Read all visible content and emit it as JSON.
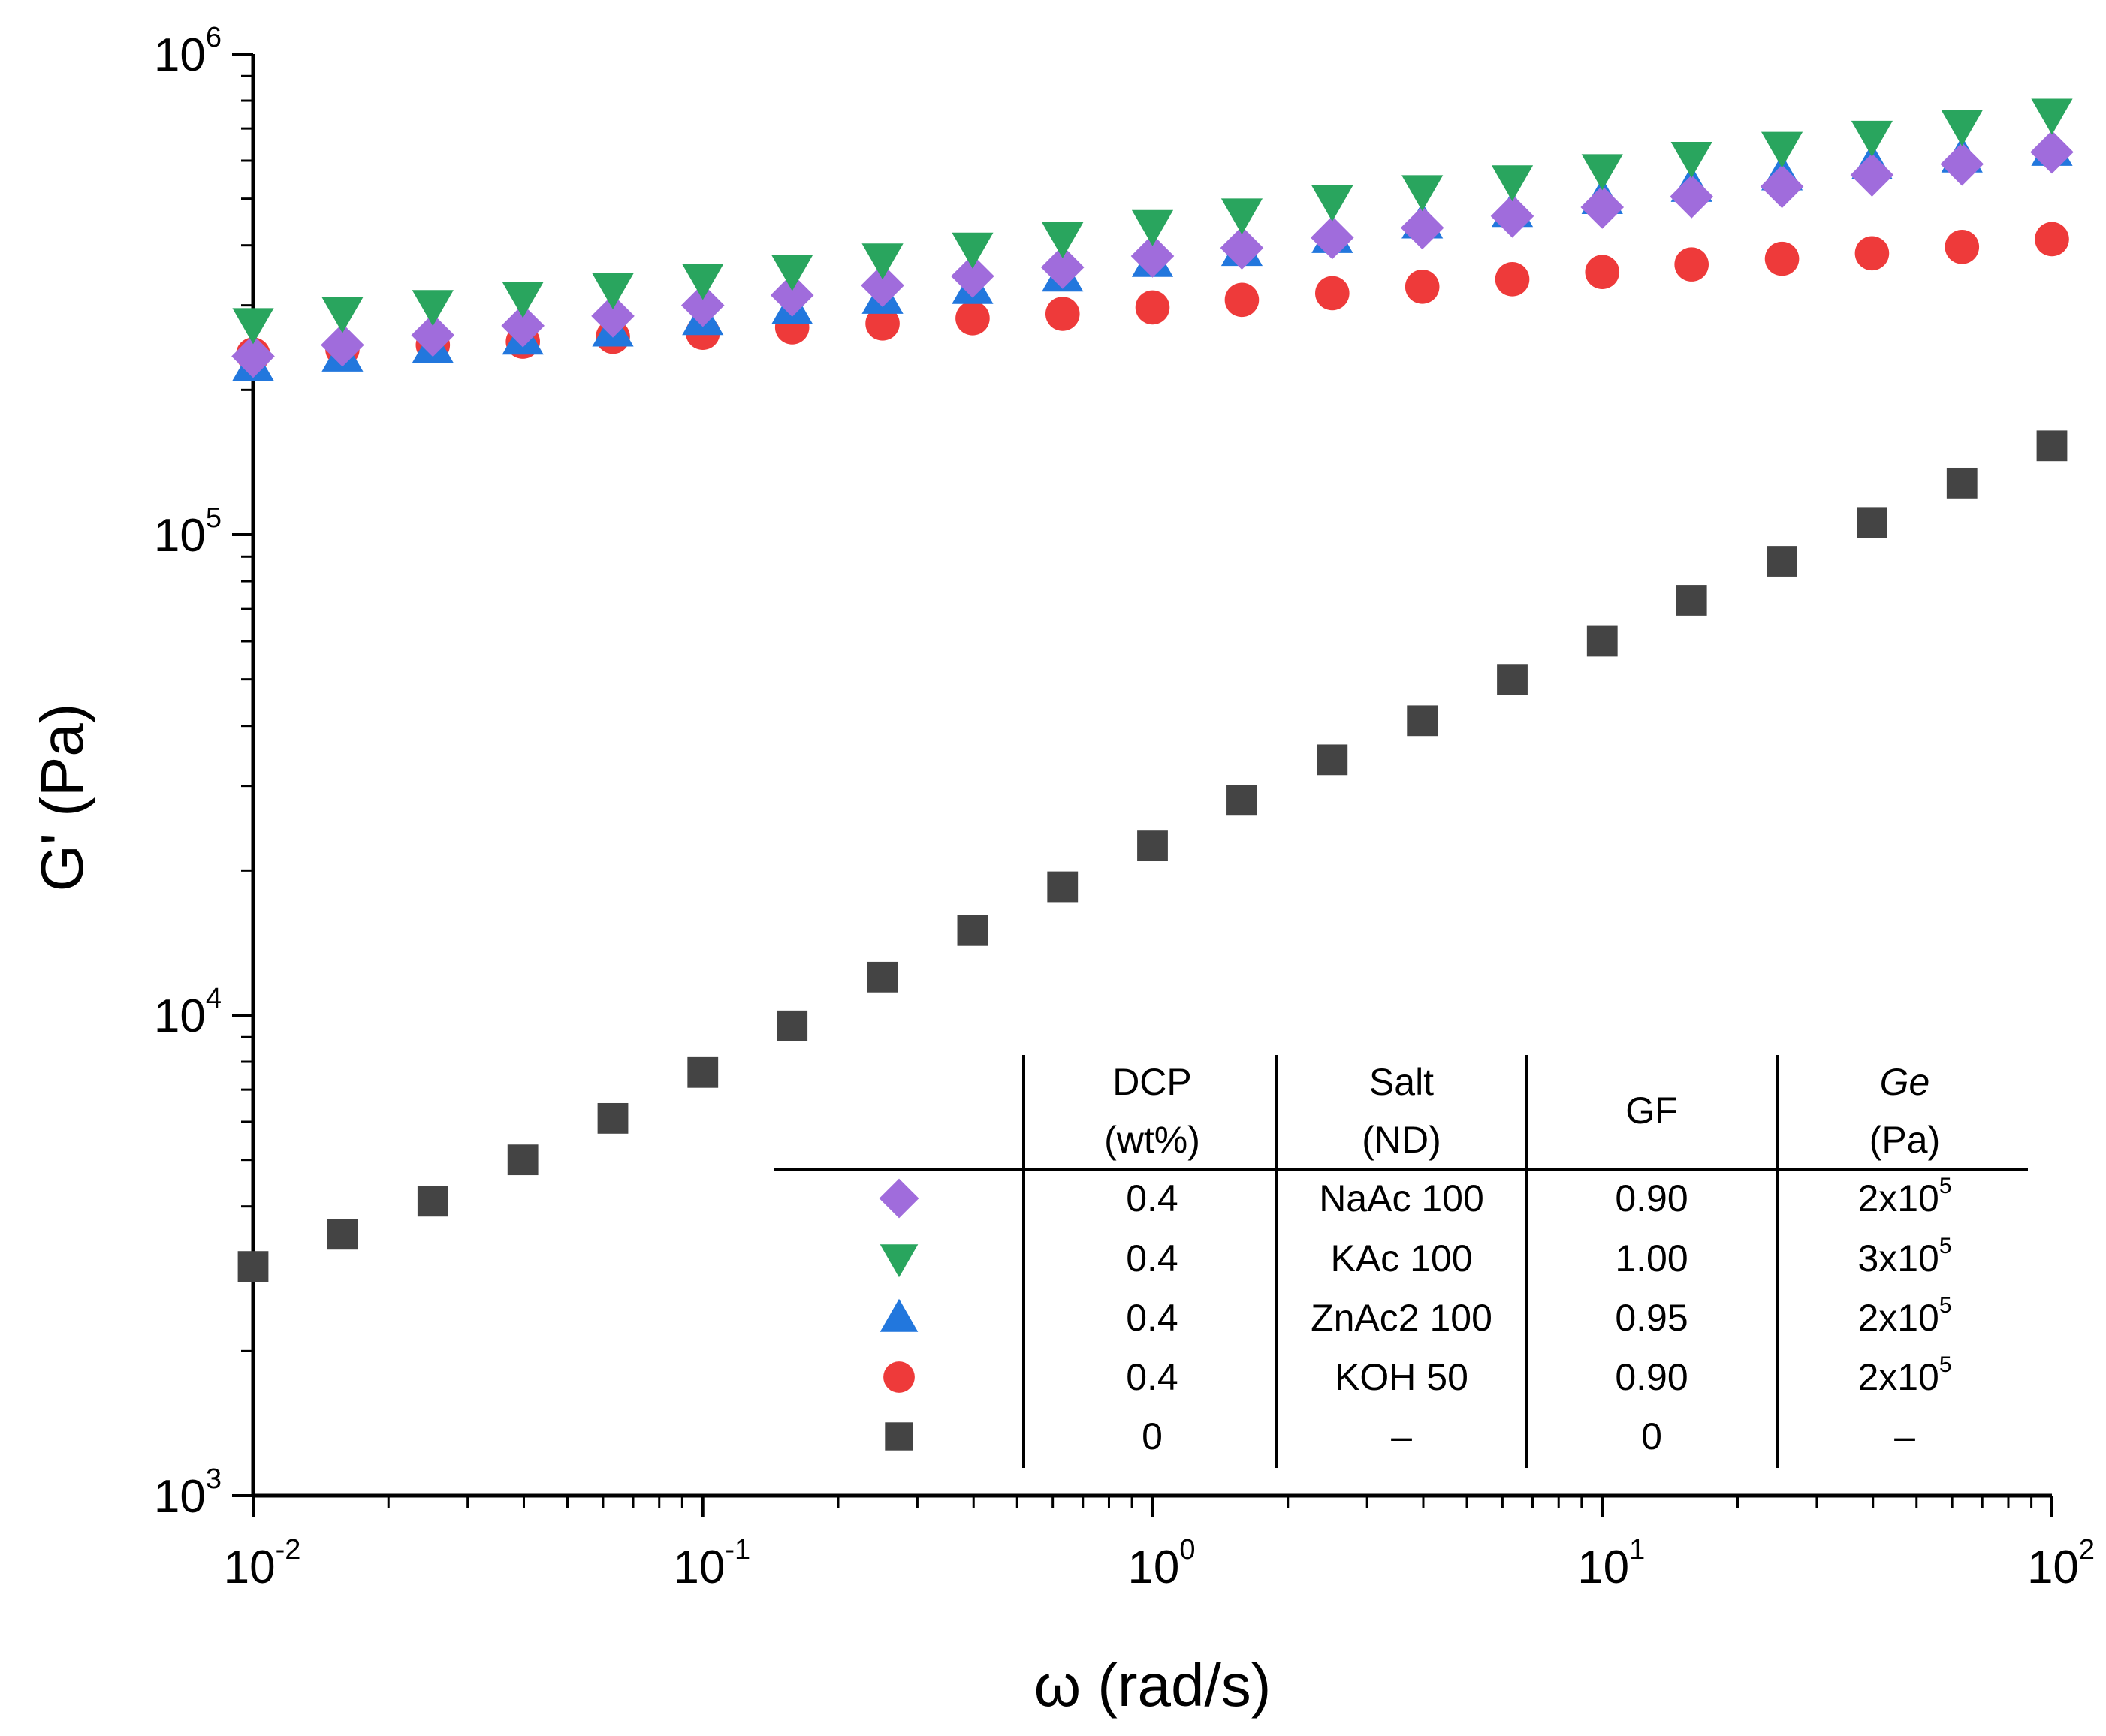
{
  "chart_data": {
    "type": "scatter",
    "title": "",
    "xlabel": "ω (rad/s)",
    "ylabel": "G' (Pa)",
    "xscale": "log",
    "yscale": "log",
    "xlim": [
      0.01,
      100
    ],
    "ylim": [
      1000,
      1000000
    ],
    "x_ticks": [
      {
        "base": "10",
        "exp": "-2",
        "value": 0.01
      },
      {
        "base": "10",
        "exp": "-1",
        "value": 0.1
      },
      {
        "base": "10",
        "exp": "0",
        "value": 1
      },
      {
        "base": "10",
        "exp": "1",
        "value": 10
      },
      {
        "base": "10",
        "exp": "2",
        "value": 100
      }
    ],
    "y_ticks": [
      {
        "base": "10",
        "exp": "3",
        "value": 1000
      },
      {
        "base": "10",
        "exp": "4",
        "value": 10000
      },
      {
        "base": "10",
        "exp": "5",
        "value": 100000
      },
      {
        "base": "10",
        "exp": "6",
        "value": 1000000
      }
    ],
    "x": [
      0.01,
      0.0158,
      0.0251,
      0.0398,
      0.0631,
      0.1,
      0.158,
      0.251,
      0.398,
      0.631,
      1,
      1.58,
      2.51,
      3.98,
      6.31,
      10,
      15.8,
      25.1,
      39.8,
      63.1,
      100
    ],
    "series": [
      {
        "name": "NaAc 100",
        "marker": "diamond",
        "color": "#a06cdc",
        "values": [
          235000,
          248000,
          260000,
          272000,
          285000,
          300000,
          315000,
          330000,
          345000,
          360000,
          380000,
          395000,
          415000,
          435000,
          460000,
          480000,
          505000,
          530000,
          560000,
          590000,
          625000
        ]
      },
      {
        "name": "KAc 100",
        "marker": "triangle-down",
        "color": "#29a55e",
        "values": [
          275000,
          290000,
          300000,
          312000,
          325000,
          340000,
          355000,
          375000,
          395000,
          415000,
          440000,
          465000,
          495000,
          520000,
          545000,
          575000,
          610000,
          640000,
          675000,
          710000,
          750000
        ]
      },
      {
        "name": "ZnAc2 100",
        "marker": "triangle-up",
        "color": "#2277dd",
        "values": [
          225000,
          235000,
          245000,
          255000,
          265000,
          280000,
          295000,
          310000,
          325000,
          345000,
          370000,
          390000,
          415000,
          445000,
          470000,
          500000,
          530000,
          560000,
          590000,
          610000,
          630000
        ]
      },
      {
        "name": "KOH 50",
        "marker": "circle",
        "color": "#ee3a3a",
        "values": [
          237000,
          243000,
          248000,
          252000,
          258000,
          263000,
          270000,
          275000,
          282000,
          288000,
          297000,
          308000,
          318000,
          328000,
          340000,
          352000,
          365000,
          375000,
          385000,
          397000,
          412000
        ]
      },
      {
        "name": "0",
        "marker": "square",
        "color": "#444444",
        "values": [
          3000,
          3500,
          4100,
          5000,
          6100,
          7600,
          9500,
          12000,
          15000,
          18500,
          22500,
          28000,
          34000,
          41000,
          50000,
          60000,
          73000,
          88000,
          106000,
          128000,
          153000
        ]
      }
    ],
    "legend_table": {
      "placement": "bottom-right",
      "headers": [
        {
          "line1": "DCP",
          "line2": "(wt%)",
          "italic": false
        },
        {
          "line1": "Salt",
          "line2": "(ND)",
          "italic": false
        },
        {
          "line1": "GF",
          "line2": "",
          "italic": false
        },
        {
          "line1": "Ge",
          "line2": "(Pa)",
          "italic": true
        }
      ],
      "rows": [
        {
          "marker": "diamond",
          "color": "#a06cdc",
          "dcp": "0.4",
          "salt": "NaAc 100",
          "gf": "0.90",
          "ge_base": "2x10",
          "ge_exp": "5"
        },
        {
          "marker": "triangle-down",
          "color": "#29a55e",
          "dcp": "0.4",
          "salt": "KAc 100",
          "gf": "1.00",
          "ge_base": "3x10",
          "ge_exp": "5"
        },
        {
          "marker": "triangle-up",
          "color": "#2277dd",
          "dcp": "0.4",
          "salt": "ZnAc2 100",
          "gf": "0.95",
          "ge_base": "2x10",
          "ge_exp": "5"
        },
        {
          "marker": "circle",
          "color": "#ee3a3a",
          "dcp": "0.4",
          "salt": "KOH 50",
          "gf": "0.90",
          "ge_base": "2x10",
          "ge_exp": "5"
        },
        {
          "marker": "square",
          "color": "#444444",
          "dcp": "0",
          "salt": "–",
          "gf": "0",
          "ge_base": "–",
          "ge_exp": ""
        }
      ]
    }
  }
}
